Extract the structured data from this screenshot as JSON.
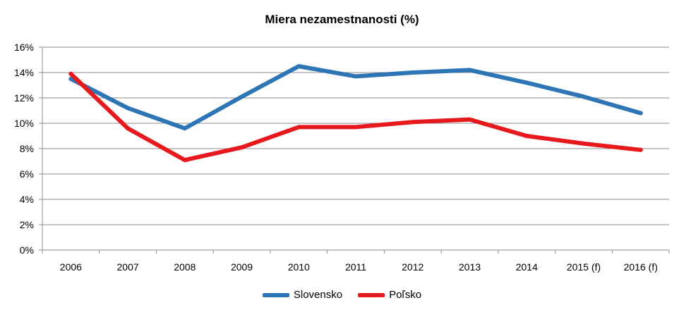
{
  "chart_data": {
    "type": "line",
    "title": "Miera nezamestnanosti (%)",
    "xlabel": "",
    "ylabel": "",
    "x": [
      "2006",
      "2007",
      "2008",
      "2009",
      "2010",
      "2011",
      "2012",
      "2013",
      "2014",
      "2015 (f)",
      "2016 (f)"
    ],
    "y_ticks": [
      "0%",
      "2%",
      "4%",
      "6%",
      "8%",
      "10%",
      "12%",
      "14%",
      "16%"
    ],
    "ylim": [
      0,
      16
    ],
    "grid": true,
    "legend": "bottom",
    "series": [
      {
        "name": "Slovensko",
        "color": "#2e75b6",
        "values": [
          13.5,
          11.2,
          9.6,
          12.1,
          14.5,
          13.7,
          14.0,
          14.2,
          13.2,
          12.1,
          10.8
        ]
      },
      {
        "name": "Poľsko",
        "color": "#e8191d",
        "values": [
          13.9,
          9.6,
          7.1,
          8.1,
          9.7,
          9.7,
          10.1,
          10.3,
          9.0,
          8.4,
          7.9
        ]
      }
    ]
  }
}
